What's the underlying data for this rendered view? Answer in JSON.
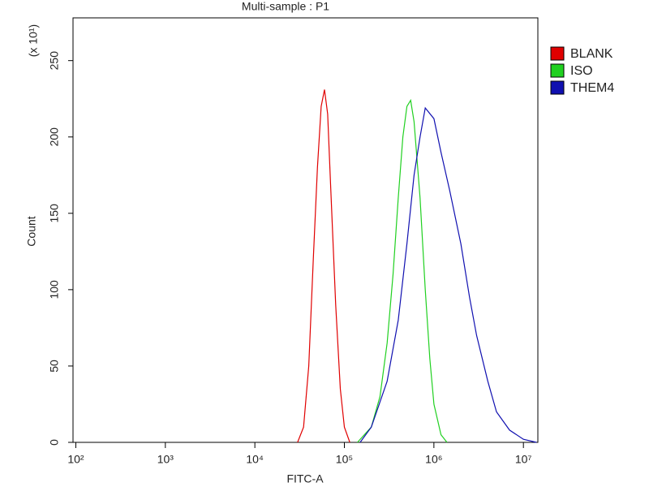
{
  "chart_data": {
    "type": "line",
    "title": "Multi-sample : P1",
    "x_label": "FITC-A",
    "y_label": "Count",
    "y_scale_note": "(x 10¹)",
    "xscale": "log",
    "xlim": [
      93,
      14500000
    ],
    "ylim": [
      0,
      278
    ],
    "xticks": [
      {
        "value": 100,
        "label": "10²"
      },
      {
        "value": 1000,
        "label": "10³"
      },
      {
        "value": 10000,
        "label": "10⁴"
      },
      {
        "value": 100000,
        "label": "10⁵"
      },
      {
        "value": 1000000,
        "label": "10⁶"
      },
      {
        "value": 10000000,
        "label": "10⁷"
      }
    ],
    "yticks": [
      0,
      50,
      100,
      150,
      200,
      250
    ],
    "legend": "upper-right-outside",
    "series": [
      {
        "name": "BLANK",
        "color": "#e00000",
        "x": [
          30000,
          35000,
          40000,
          45000,
          50000,
          55000,
          60000,
          65000,
          70000,
          80000,
          90000,
          100000,
          115000
        ],
        "values": [
          0,
          10,
          50,
          120,
          180,
          220,
          231,
          215,
          170,
          90,
          35,
          10,
          0
        ]
      },
      {
        "name": "ISO",
        "color": "#20d020",
        "x": [
          140000,
          200000,
          250000,
          300000,
          350000,
          400000,
          450000,
          500000,
          550000,
          600000,
          700000,
          800000,
          900000,
          1000000,
          1200000,
          1400000
        ],
        "values": [
          0,
          10,
          30,
          65,
          110,
          160,
          200,
          220,
          224,
          210,
          160,
          100,
          55,
          25,
          5,
          0
        ]
      },
      {
        "name": "THEM4",
        "color": "#1010b0",
        "x": [
          150000,
          200000,
          300000,
          400000,
          500000,
          600000,
          700000,
          800000,
          1000000,
          1200000,
          1500000,
          2000000,
          2500000,
          3000000,
          4000000,
          5000000,
          7000000,
          10000000,
          14000000
        ],
        "values": [
          0,
          10,
          40,
          80,
          130,
          175,
          200,
          219,
          212,
          190,
          165,
          130,
          95,
          70,
          40,
          20,
          8,
          2,
          0
        ]
      }
    ]
  }
}
